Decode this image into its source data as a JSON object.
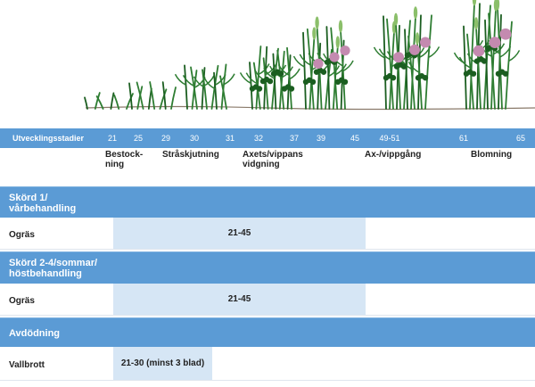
{
  "stage_bar": {
    "title": "Utvecklingsstadier",
    "stages": [
      "21",
      "25",
      "29",
      "30",
      "31",
      "32",
      "37",
      "39",
      "45",
      "49-51",
      "61",
      "65"
    ]
  },
  "phases": [
    {
      "label": "Bestock-\nning"
    },
    {
      "label": "Stråskjutning"
    },
    {
      "label": "Axets/vippans\nvidgning"
    },
    {
      "label": "Ax-/vippgång"
    },
    {
      "label": "Blomning"
    }
  ],
  "sections": [
    {
      "title": "Skörd 1/\nvårbehandling",
      "row_label": "Ogräs",
      "range": "21-45"
    },
    {
      "title": "Skörd 2-4/sommar/\nhöstbehandling",
      "row_label": "Ogräs",
      "range": "21-45"
    },
    {
      "title": "Avdödning",
      "row_label": "Vallbrott",
      "range": "21-30 (minst 3 blad)"
    }
  ],
  "colors": {
    "header_blue": "#5b9bd5",
    "span_light_blue": "#d6e6f5",
    "plant_green": "#2e7d32",
    "leaf_dark_green": "#1b5e20",
    "clover_pink": "#c48ab0"
  }
}
